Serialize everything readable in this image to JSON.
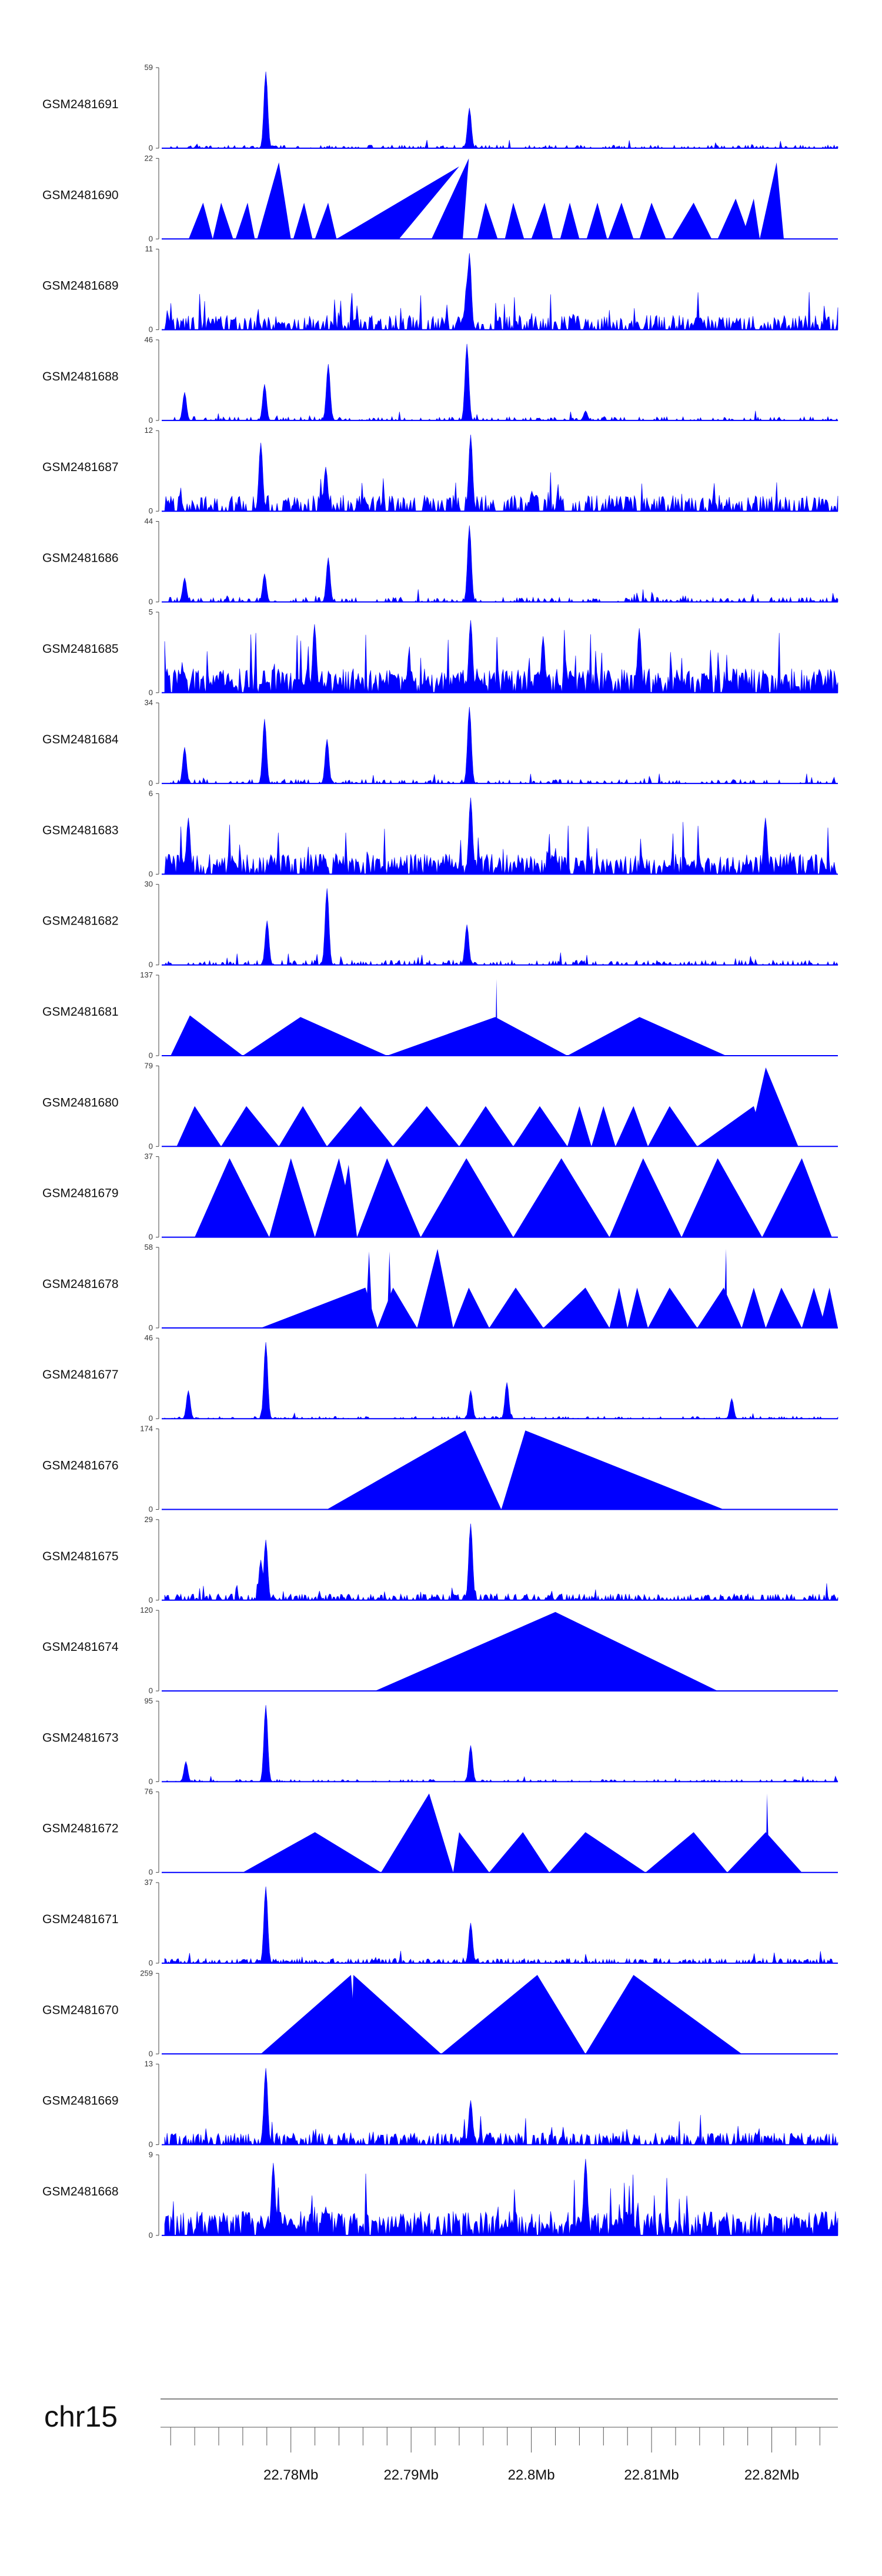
{
  "chart_data": {
    "type": "area",
    "title": "",
    "track_color": "#0000ff",
    "axis_color": "#444444",
    "chromosome": "chr15",
    "x_start_mb": 22.7695,
    "x_end_mb": 22.8255,
    "x_ticks": [
      {
        "mb": 22.78,
        "label": "22.78Mb"
      },
      {
        "mb": 22.79,
        "label": "22.79Mb"
      },
      {
        "mb": 22.8,
        "label": "22.8Mb"
      },
      {
        "mb": 22.81,
        "label": "22.81Mb"
      },
      {
        "mb": 22.82,
        "label": "22.82Mb"
      }
    ],
    "tracks": [
      {
        "name": "GSM2481691",
        "ymax": 59,
        "style": "peaks",
        "density": 0.35,
        "base": 0.04,
        "peaks": [
          [
            22.7779,
            0.95
          ],
          [
            22.7949,
            0.5
          ]
        ]
      },
      {
        "name": "GSM2481690",
        "ymax": 22,
        "style": "tri",
        "tris": [
          [
            22.7715,
            22.7735,
            22.7727,
            0.45
          ],
          [
            22.7735,
            22.7752,
            22.7742,
            0.45
          ],
          [
            22.7754,
            22.777,
            22.7764,
            0.45
          ],
          [
            22.7772,
            22.78,
            22.779,
            0.95
          ],
          [
            22.7802,
            22.7818,
            22.7811,
            0.45
          ],
          [
            22.782,
            22.7838,
            22.7831,
            0.45
          ],
          [
            22.7838,
            22.789,
            22.794,
            0.9
          ],
          [
            22.7917,
            22.7943,
            22.7948,
            1.0
          ],
          [
            22.7955,
            22.7972,
            22.7962,
            0.45
          ],
          [
            22.7978,
            22.7994,
            22.7985,
            0.45
          ],
          [
            22.8,
            22.8018,
            22.8011,
            0.45
          ],
          [
            22.8024,
            22.804,
            22.8032,
            0.45
          ],
          [
            22.8046,
            22.8063,
            22.8055,
            0.45
          ],
          [
            22.8064,
            22.8085,
            22.8075,
            0.45
          ],
          [
            22.809,
            22.8112,
            22.81,
            0.45
          ],
          [
            22.8117,
            22.815,
            22.8135,
            0.45
          ],
          [
            22.8155,
            22.8182,
            22.817,
            0.5
          ],
          [
            22.8175,
            22.819,
            22.8185,
            0.5
          ],
          [
            22.819,
            22.821,
            22.8204,
            0.95
          ]
        ]
      },
      {
        "name": "GSM2481689",
        "ymax": 11,
        "style": "peaks",
        "density": 0.65,
        "base": 0.18,
        "peaks": [
          [
            22.7949,
            0.95
          ],
          [
            22.7946,
            0.6
          ]
        ]
      },
      {
        "name": "GSM2481688",
        "ymax": 46,
        "style": "peaks",
        "density": 0.3,
        "base": 0.05,
        "peaks": [
          [
            22.7712,
            0.35
          ],
          [
            22.7778,
            0.45
          ],
          [
            22.7831,
            0.7
          ],
          [
            22.7946,
            0.95
          ],
          [
            22.8045,
            0.12
          ]
        ]
      },
      {
        "name": "GSM2481687",
        "ymax": 12,
        "style": "peaks",
        "density": 0.6,
        "base": 0.2,
        "peaks": [
          [
            22.7775,
            0.85
          ],
          [
            22.7829,
            0.55
          ],
          [
            22.795,
            0.95
          ],
          [
            22.8,
            0.25
          ]
        ]
      },
      {
        "name": "GSM2481686",
        "ymax": 44,
        "style": "peaks",
        "density": 0.35,
        "base": 0.06,
        "peaks": [
          [
            22.7712,
            0.3
          ],
          [
            22.7778,
            0.35
          ],
          [
            22.7831,
            0.55
          ],
          [
            22.7949,
            0.95
          ]
        ]
      },
      {
        "name": "GSM2481685",
        "ymax": 5,
        "style": "peaks",
        "density": 0.85,
        "base": 0.3,
        "peaks": [
          [
            22.782,
            0.85
          ],
          [
            22.795,
            0.9
          ],
          [
            22.801,
            0.7
          ],
          [
            22.809,
            0.8
          ]
        ]
      },
      {
        "name": "GSM2481684",
        "ymax": 34,
        "style": "peaks",
        "density": 0.3,
        "base": 0.05,
        "peaks": [
          [
            22.7712,
            0.45
          ],
          [
            22.7778,
            0.8
          ],
          [
            22.783,
            0.55
          ],
          [
            22.7948,
            0.95
          ]
        ]
      },
      {
        "name": "GSM2481683",
        "ymax": 6,
        "style": "peaks",
        "density": 0.8,
        "base": 0.25,
        "peaks": [
          [
            22.795,
            0.95
          ],
          [
            22.8195,
            0.7
          ],
          [
            22.7715,
            0.7
          ]
        ]
      },
      {
        "name": "GSM2481682",
        "ymax": 30,
        "style": "peaks",
        "density": 0.4,
        "base": 0.06,
        "peaks": [
          [
            22.778,
            0.55
          ],
          [
            22.783,
            0.95
          ],
          [
            22.7946,
            0.5
          ]
        ]
      },
      {
        "name": "GSM2481681",
        "ymax": 137,
        "style": "tri",
        "tris": [
          [
            22.77,
            22.776,
            22.7716,
            0.5
          ],
          [
            22.776,
            22.788,
            22.7808,
            0.48
          ],
          [
            22.788,
            22.803,
            22.797,
            0.48
          ],
          [
            22.797,
            22.7972,
            22.7971,
            0.95
          ],
          [
            22.803,
            22.8162,
            22.809,
            0.48
          ]
        ]
      },
      {
        "name": "GSM2481680",
        "ymax": 79,
        "style": "tri",
        "tris": [
          [
            22.7705,
            22.7742,
            22.772,
            0.5
          ],
          [
            22.7742,
            22.779,
            22.7763,
            0.5
          ],
          [
            22.779,
            22.783,
            22.781,
            0.5
          ],
          [
            22.783,
            22.7885,
            22.7858,
            0.5
          ],
          [
            22.7885,
            22.794,
            22.7913,
            0.5
          ],
          [
            22.794,
            22.7985,
            22.7962,
            0.5
          ],
          [
            22.7985,
            22.803,
            22.8007,
            0.5
          ],
          [
            22.803,
            22.805,
            22.804,
            0.5
          ],
          [
            22.805,
            22.807,
            22.806,
            0.5
          ],
          [
            22.807,
            22.8097,
            22.8085,
            0.5
          ],
          [
            22.8097,
            22.8138,
            22.8115,
            0.5
          ],
          [
            22.8138,
            22.8195,
            22.8185,
            0.5
          ],
          [
            22.818,
            22.8222,
            22.8195,
            0.98
          ]
        ]
      },
      {
        "name": "GSM2481679",
        "ymax": 37,
        "style": "tri",
        "tris": [
          [
            22.772,
            22.7782,
            22.7749,
            0.98
          ],
          [
            22.7782,
            22.782,
            22.78,
            0.98
          ],
          [
            22.782,
            22.7855,
            22.784,
            0.98
          ],
          [
            22.7838,
            22.7855,
            22.7848,
            0.9
          ],
          [
            22.7855,
            22.7908,
            22.788,
            0.98
          ],
          [
            22.7908,
            22.7985,
            22.7946,
            0.98
          ],
          [
            22.7985,
            22.8065,
            22.8025,
            0.98
          ],
          [
            22.8025,
            22.8028,
            22.8026,
            0.6
          ],
          [
            22.8065,
            22.8125,
            22.8093,
            0.98
          ],
          [
            22.8125,
            22.8192,
            22.8155,
            0.98
          ],
          [
            22.8192,
            22.825,
            22.8225,
            0.98
          ]
        ]
      },
      {
        "name": "GSM2481678",
        "ymax": 58,
        "style": "tri",
        "tris": [
          [
            22.7775,
            22.7872,
            22.7862,
            0.5
          ],
          [
            22.7862,
            22.7868,
            22.7865,
            0.95
          ],
          [
            22.7872,
            22.7905,
            22.7885,
            0.5
          ],
          [
            22.788,
            22.7884,
            22.7882,
            0.95
          ],
          [
            22.7905,
            22.7935,
            22.7922,
            0.98
          ],
          [
            22.7935,
            22.7965,
            22.7948,
            0.5
          ],
          [
            22.7965,
            22.801,
            22.7987,
            0.5
          ],
          [
            22.801,
            22.8065,
            22.8045,
            0.5
          ],
          [
            22.8065,
            22.808,
            22.8073,
            0.5
          ],
          [
            22.808,
            22.8097,
            22.8088,
            0.5
          ],
          [
            22.8097,
            22.8138,
            22.8115,
            0.5
          ],
          [
            22.8138,
            22.8175,
            22.816,
            0.5
          ],
          [
            22.816,
            22.8163,
            22.8162,
            0.98
          ],
          [
            22.8175,
            22.8195,
            22.8185,
            0.5
          ],
          [
            22.8195,
            22.8225,
            22.8208,
            0.5
          ],
          [
            22.8225,
            22.8245,
            22.8235,
            0.5
          ],
          [
            22.824,
            22.8255,
            22.8248,
            0.5
          ]
        ]
      },
      {
        "name": "GSM2481677",
        "ymax": 46,
        "style": "peaks",
        "density": 0.25,
        "base": 0.03,
        "peaks": [
          [
            22.7779,
            0.95
          ],
          [
            22.7715,
            0.35
          ],
          [
            22.795,
            0.35
          ],
          [
            22.798,
            0.45
          ],
          [
            22.8167,
            0.25
          ]
        ]
      },
      {
        "name": "GSM2481676",
        "ymax": 174,
        "style": "tri",
        "tris": [
          [
            22.783,
            22.7975,
            22.7945,
            0.98
          ],
          [
            22.7975,
            22.816,
            22.7995,
            0.98
          ]
        ]
      },
      {
        "name": "GSM2481675",
        "ymax": 29,
        "style": "peaks",
        "density": 0.55,
        "base": 0.08,
        "peaks": [
          [
            22.7779,
            0.75
          ],
          [
            22.795,
            0.95
          ],
          [
            22.7775,
            0.5
          ]
        ]
      },
      {
        "name": "GSM2481674",
        "ymax": 120,
        "style": "tri",
        "tris": [
          [
            22.787,
            22.8155,
            22.802,
            0.98
          ]
        ]
      },
      {
        "name": "GSM2481673",
        "ymax": 95,
        "style": "peaks",
        "density": 0.25,
        "base": 0.03,
        "peaks": [
          [
            22.7779,
            0.95
          ],
          [
            22.7713,
            0.25
          ],
          [
            22.795,
            0.45
          ]
        ]
      },
      {
        "name": "GSM2481672",
        "ymax": 76,
        "style": "tri",
        "tris": [
          [
            22.776,
            22.7875,
            22.782,
            0.5
          ],
          [
            22.782,
            22.7823,
            22.7821,
            0.5
          ],
          [
            22.7875,
            22.7935,
            22.7915,
            0.98
          ],
          [
            22.7935,
            22.7965,
            22.794,
            0.5
          ],
          [
            22.7965,
            22.8015,
            22.7993,
            0.5
          ],
          [
            22.8015,
            22.8095,
            22.8045,
            0.5
          ],
          [
            22.8095,
            22.8163,
            22.8135,
            0.5
          ],
          [
            22.8163,
            22.8225,
            22.8195,
            0.5
          ],
          [
            22.8195,
            22.8198,
            22.8196,
            0.98
          ]
        ]
      },
      {
        "name": "GSM2481671",
        "ymax": 37,
        "style": "peaks",
        "density": 0.5,
        "base": 0.06,
        "peaks": [
          [
            22.7779,
            0.95
          ],
          [
            22.795,
            0.5
          ]
        ]
      },
      {
        "name": "GSM2481670",
        "ymax": 259,
        "style": "tri",
        "tris": [
          [
            22.7775,
            22.7855,
            22.785,
            0.98
          ],
          [
            22.785,
            22.7925,
            22.7852,
            0.98
          ],
          [
            22.7925,
            22.8045,
            22.8005,
            0.98
          ],
          [
            22.8045,
            22.8175,
            22.8085,
            0.98
          ]
        ]
      },
      {
        "name": "GSM2481669",
        "ymax": 13,
        "style": "peaks",
        "density": 0.65,
        "base": 0.15,
        "peaks": [
          [
            22.7779,
            0.95
          ],
          [
            22.795,
            0.55
          ]
        ]
      },
      {
        "name": "GSM2481668",
        "ymax": 9,
        "style": "peaks",
        "density": 0.85,
        "base": 0.3,
        "peaks": [
          [
            22.7785,
            0.9
          ],
          [
            22.8045,
            0.95
          ]
        ]
      }
    ]
  }
}
